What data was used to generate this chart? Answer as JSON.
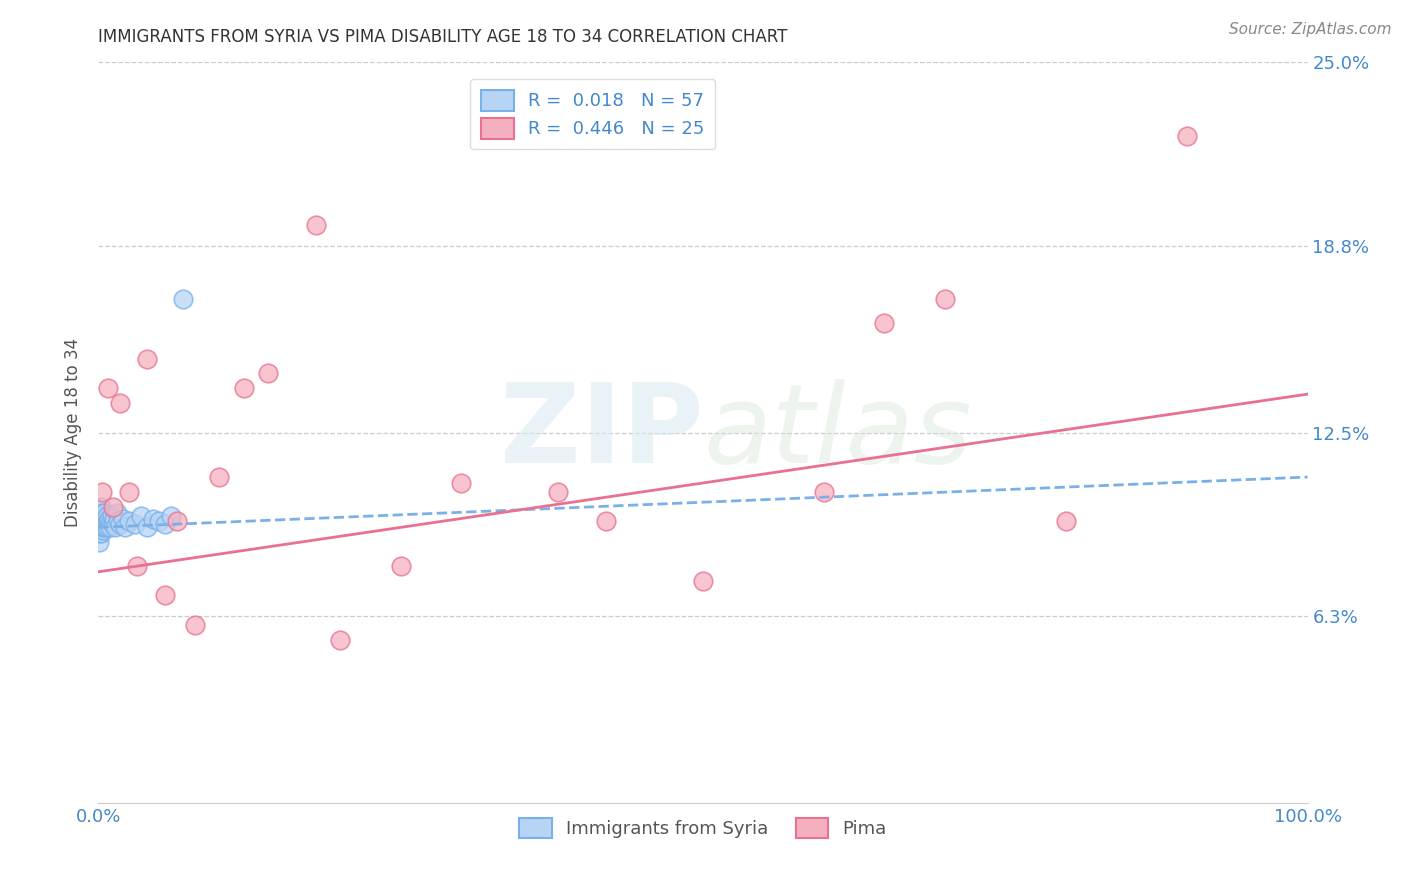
{
  "title": "IMMIGRANTS FROM SYRIA VS PIMA DISABILITY AGE 18 TO 34 CORRELATION CHART",
  "source": "Source: ZipAtlas.com",
  "ylabel": "Disability Age 18 to 34",
  "xlim": [
    0.0,
    100.0
  ],
  "ylim": [
    0.0,
    25.0
  ],
  "yticks": [
    6.3,
    12.5,
    18.8,
    25.0
  ],
  "watermark_zip": "ZIP",
  "watermark_atlas": "atlas",
  "legend_line1": "R =  0.018   N = 57",
  "legend_line2": "R =  0.446   N = 25",
  "series1_label": "Immigrants from Syria",
  "series2_label": "Pima",
  "series1_line_color": "#7ab0e8",
  "series2_line_color": "#e87090",
  "series1_fill_color": "#b8d4f5",
  "series2_fill_color": "#f5b0c0",
  "blue_x": [
    0.05,
    0.06,
    0.07,
    0.08,
    0.09,
    0.1,
    0.11,
    0.12,
    0.13,
    0.14,
    0.15,
    0.16,
    0.17,
    0.18,
    0.19,
    0.2,
    0.22,
    0.24,
    0.26,
    0.28,
    0.3,
    0.32,
    0.35,
    0.38,
    0.4,
    0.42,
    0.45,
    0.48,
    0.5,
    0.55,
    0.6,
    0.65,
    0.7,
    0.75,
    0.8,
    0.85,
    0.9,
    0.95,
    1.0,
    1.1,
    1.2,
    1.3,
    1.4,
    1.5,
    1.6,
    1.8,
    2.0,
    2.2,
    2.5,
    3.0,
    3.5,
    4.0,
    4.5,
    5.0,
    5.5,
    6.0,
    7.0
  ],
  "blue_y": [
    9.4,
    9.2,
    9.6,
    8.8,
    9.5,
    9.3,
    9.7,
    9.1,
    9.8,
    9.4,
    9.5,
    9.3,
    9.6,
    9.2,
    9.7,
    9.4,
    10.0,
    9.1,
    9.8,
    9.3,
    9.5,
    9.4,
    9.7,
    9.2,
    9.6,
    9.3,
    9.8,
    9.4,
    9.5,
    9.3,
    9.6,
    9.4,
    9.7,
    9.3,
    9.5,
    9.4,
    9.6,
    9.3,
    9.5,
    9.7,
    9.4,
    9.6,
    9.3,
    9.8,
    9.5,
    9.4,
    9.6,
    9.3,
    9.5,
    9.4,
    9.7,
    9.3,
    9.6,
    9.5,
    9.4,
    9.7,
    17.0
  ],
  "pink_x": [
    0.3,
    0.8,
    1.2,
    1.8,
    2.5,
    3.2,
    4.0,
    5.5,
    6.5,
    8.0,
    10.0,
    12.0,
    14.0,
    18.0,
    20.0,
    25.0,
    30.0,
    38.0,
    42.0,
    50.0,
    60.0,
    65.0,
    70.0,
    80.0,
    90.0
  ],
  "pink_y": [
    10.5,
    14.0,
    10.0,
    13.5,
    10.5,
    8.0,
    15.0,
    7.0,
    9.5,
    6.0,
    11.0,
    14.0,
    14.5,
    19.5,
    5.5,
    8.0,
    10.8,
    10.5,
    9.5,
    7.5,
    10.5,
    16.2,
    17.0,
    9.5,
    22.5
  ],
  "blue_trend_x": [
    0.0,
    100.0
  ],
  "blue_trend_y": [
    9.3,
    11.0
  ],
  "pink_trend_x": [
    0.0,
    100.0
  ],
  "pink_trend_y": [
    7.8,
    13.8
  ],
  "title_color": "#333333",
  "axis_label_color": "#4488cc",
  "ylabel_color": "#555555",
  "grid_color": "#cccccc",
  "background_color": "#ffffff"
}
